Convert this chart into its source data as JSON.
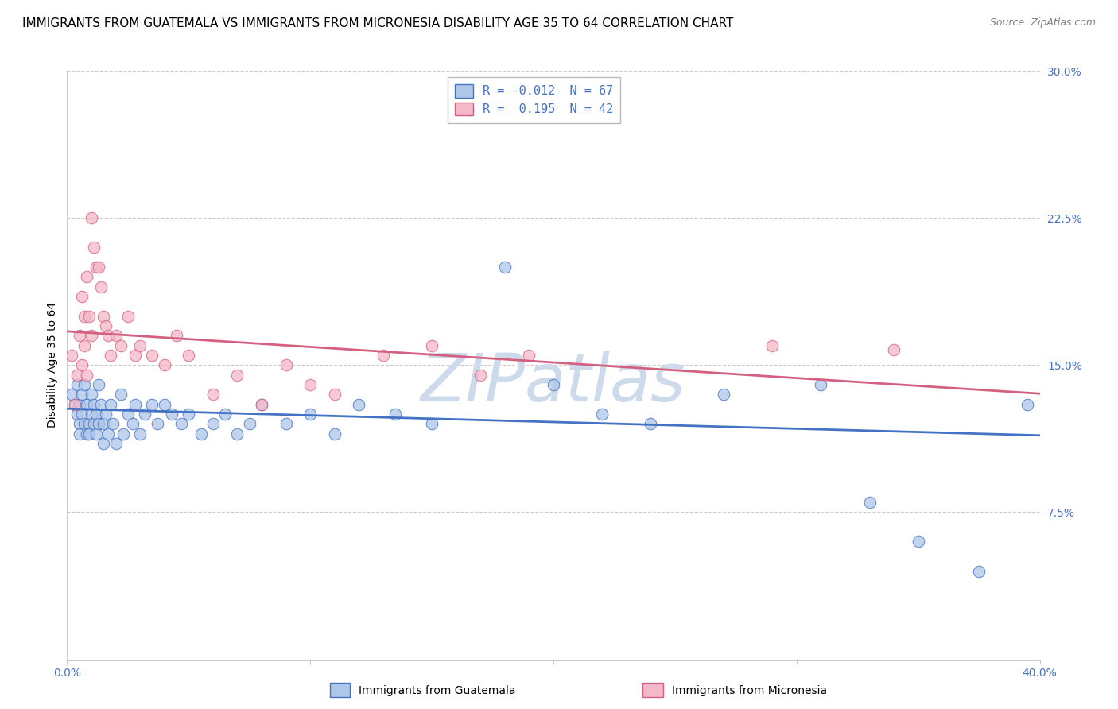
{
  "title": "IMMIGRANTS FROM GUATEMALA VS IMMIGRANTS FROM MICRONESIA DISABILITY AGE 35 TO 64 CORRELATION CHART",
  "source": "Source: ZipAtlas.com",
  "ylabel": "Disability Age 35 to 64",
  "xlim": [
    0.0,
    0.4
  ],
  "ylim": [
    0.0,
    0.3
  ],
  "r_guatemala": -0.012,
  "n_guatemala": 67,
  "r_micronesia": 0.195,
  "n_micronesia": 42,
  "color_guatemala": "#aec6e8",
  "color_micronesia": "#f4b8c8",
  "line_color_guatemala": "#4472c4",
  "line_color_micronesia": "#d46080",
  "watermark_color": "#cddaeb",
  "guatemala_x": [
    0.002,
    0.003,
    0.004,
    0.004,
    0.005,
    0.005,
    0.005,
    0.006,
    0.006,
    0.007,
    0.007,
    0.008,
    0.008,
    0.009,
    0.009,
    0.01,
    0.01,
    0.011,
    0.011,
    0.012,
    0.012,
    0.013,
    0.013,
    0.014,
    0.015,
    0.015,
    0.016,
    0.017,
    0.018,
    0.019,
    0.02,
    0.022,
    0.023,
    0.025,
    0.027,
    0.028,
    0.03,
    0.032,
    0.035,
    0.037,
    0.04,
    0.043,
    0.047,
    0.05,
    0.055,
    0.06,
    0.065,
    0.07,
    0.075,
    0.08,
    0.09,
    0.1,
    0.11,
    0.12,
    0.135,
    0.15,
    0.165,
    0.18,
    0.2,
    0.22,
    0.24,
    0.27,
    0.31,
    0.33,
    0.35,
    0.375,
    0.395
  ],
  "guatemala_y": [
    0.135,
    0.13,
    0.14,
    0.125,
    0.12,
    0.13,
    0.115,
    0.125,
    0.135,
    0.12,
    0.14,
    0.115,
    0.13,
    0.12,
    0.115,
    0.125,
    0.135,
    0.12,
    0.13,
    0.115,
    0.125,
    0.14,
    0.12,
    0.13,
    0.12,
    0.11,
    0.125,
    0.115,
    0.13,
    0.12,
    0.11,
    0.135,
    0.115,
    0.125,
    0.12,
    0.13,
    0.115,
    0.125,
    0.13,
    0.12,
    0.13,
    0.125,
    0.12,
    0.125,
    0.115,
    0.12,
    0.125,
    0.115,
    0.12,
    0.13,
    0.12,
    0.125,
    0.115,
    0.13,
    0.125,
    0.12,
    0.28,
    0.2,
    0.14,
    0.125,
    0.12,
    0.135,
    0.14,
    0.08,
    0.06,
    0.045,
    0.13
  ],
  "micronesia_x": [
    0.002,
    0.003,
    0.004,
    0.005,
    0.006,
    0.006,
    0.007,
    0.007,
    0.008,
    0.008,
    0.009,
    0.01,
    0.01,
    0.011,
    0.012,
    0.013,
    0.014,
    0.015,
    0.016,
    0.017,
    0.018,
    0.02,
    0.022,
    0.025,
    0.028,
    0.03,
    0.035,
    0.04,
    0.045,
    0.05,
    0.06,
    0.07,
    0.08,
    0.09,
    0.1,
    0.11,
    0.13,
    0.15,
    0.17,
    0.19,
    0.29,
    0.34
  ],
  "micronesia_y": [
    0.155,
    0.13,
    0.145,
    0.165,
    0.15,
    0.185,
    0.175,
    0.16,
    0.145,
    0.195,
    0.175,
    0.165,
    0.225,
    0.21,
    0.2,
    0.2,
    0.19,
    0.175,
    0.17,
    0.165,
    0.155,
    0.165,
    0.16,
    0.175,
    0.155,
    0.16,
    0.155,
    0.15,
    0.165,
    0.155,
    0.135,
    0.145,
    0.13,
    0.15,
    0.14,
    0.135,
    0.155,
    0.16,
    0.145,
    0.155,
    0.16,
    0.158
  ],
  "legend_labels": [
    "Immigrants from Guatemala",
    "Immigrants from Micronesia"
  ],
  "title_fontsize": 11,
  "axis_label_fontsize": 10,
  "tick_fontsize": 10
}
